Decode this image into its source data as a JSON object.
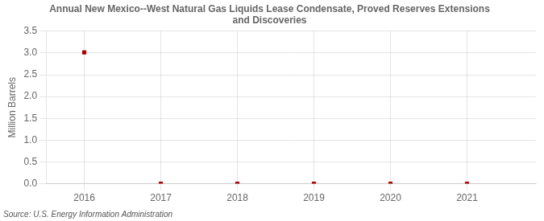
{
  "chart_data": {
    "type": "scatter",
    "title": "Annual New Mexico--West Natural Gas Liquids Lease Condensate, Proved Reserves Extensions\nand Discoveries",
    "y_label": "Million Barrels",
    "annotations": [
      "Source: U.S. Energy Information Administration"
    ],
    "x": [
      2016,
      2017,
      2018,
      2019,
      2020,
      2021
    ],
    "values": [
      3.014,
      0.0,
      0.0,
      0.0,
      0.0,
      0.0
    ],
    "color": "#aa0000",
    "marker": "square",
    "xlim": [
      2015.5,
      2021.9
    ],
    "xticks": [
      2016,
      2017,
      2018,
      2019,
      2020,
      2021
    ],
    "ylim": [
      0.0,
      3.5
    ],
    "yticks": [
      {
        "value": 0.0,
        "label": "0.0"
      },
      0.5,
      {
        "value": 1.0,
        "label": "1.0"
      },
      1.5,
      {
        "value": 2.0,
        "label": "2.0"
      },
      2.5,
      {
        "value": 3.0,
        "label": "3.0"
      },
      3.5
    ],
    "grid": true
  }
}
